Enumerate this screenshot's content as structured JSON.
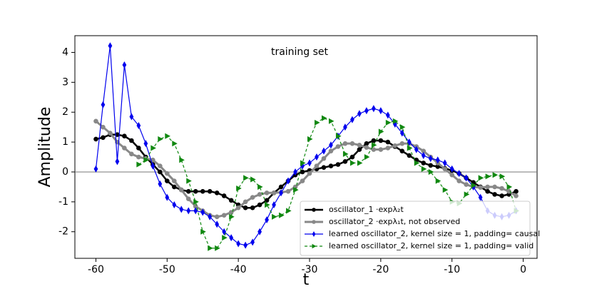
{
  "chart_data": {
    "type": "line",
    "xlabel": "t",
    "ylabel": "Amplitude",
    "annotation": "training set",
    "x": [
      -60,
      -59,
      -58,
      -57,
      -56,
      -55,
      -54,
      -53,
      -52,
      -51,
      -50,
      -49,
      -48,
      -47,
      -46,
      -45,
      -44,
      -43,
      -42,
      -41,
      -40,
      -39,
      -38,
      -37,
      -36,
      -35,
      -34,
      -33,
      -32,
      -31,
      -30,
      -29,
      -28,
      -27,
      -26,
      -25,
      -24,
      -23,
      -22,
      -21,
      -20,
      -19,
      -18,
      -17,
      -16,
      -15,
      -14,
      -13,
      -12,
      -11,
      -10,
      -9,
      -8,
      -7,
      -6,
      -5,
      -4,
      -3,
      -2,
      -1
    ],
    "series": [
      {
        "name": "oscillator_1 ·expλ₂t",
        "color": "#000000",
        "marker": "circle",
        "dashed": false,
        "width": 2.5,
        "values": [
          1.1,
          1.15,
          1.25,
          1.25,
          1.2,
          1.05,
          0.8,
          0.5,
          0.25,
          0.0,
          -0.3,
          -0.5,
          -0.6,
          -0.65,
          -0.65,
          -0.65,
          -0.65,
          -0.7,
          -0.8,
          -0.95,
          -1.1,
          -1.2,
          -1.2,
          -1.1,
          -0.95,
          -0.7,
          -0.5,
          -0.3,
          -0.1,
          0.0,
          0.05,
          0.1,
          0.15,
          0.2,
          0.25,
          0.35,
          0.5,
          0.75,
          0.95,
          1.05,
          1.05,
          1.0,
          0.85,
          0.7,
          0.55,
          0.4,
          0.3,
          0.22,
          0.18,
          0.12,
          0.05,
          -0.05,
          -0.2,
          -0.35,
          -0.5,
          -0.65,
          -0.75,
          -0.8,
          -0.75,
          -0.65
        ]
      },
      {
        "name": "oscillator_2 ·expλ₁t, not observed",
        "color": "#888888",
        "marker": "circle",
        "dashed": false,
        "width": 3,
        "values": [
          1.7,
          1.5,
          1.3,
          1.0,
          0.8,
          0.6,
          0.5,
          0.45,
          0.4,
          0.2,
          -0.05,
          -0.3,
          -0.6,
          -0.9,
          -1.15,
          -1.3,
          -1.45,
          -1.5,
          -1.45,
          -1.35,
          -1.2,
          -1.0,
          -0.85,
          -0.75,
          -0.7,
          -0.7,
          -0.68,
          -0.65,
          -0.5,
          -0.3,
          -0.05,
          0.2,
          0.45,
          0.7,
          0.85,
          0.95,
          0.95,
          0.9,
          0.82,
          0.75,
          0.75,
          0.8,
          0.88,
          0.95,
          0.95,
          0.85,
          0.7,
          0.5,
          0.3,
          0.1,
          -0.1,
          -0.3,
          -0.42,
          -0.5,
          -0.52,
          -0.5,
          -0.5,
          -0.55,
          -0.65,
          -0.8
        ]
      },
      {
        "name": "learned oscillator_2, kernel size = 1, padding= causal",
        "color": "#0000ee",
        "marker": "diamond",
        "dashed": false,
        "width": 1.2,
        "values": [
          0.1,
          2.25,
          4.22,
          0.35,
          3.58,
          1.85,
          1.55,
          0.95,
          0.2,
          -0.4,
          -0.85,
          -1.1,
          -1.25,
          -1.3,
          -1.3,
          -1.35,
          -1.5,
          -1.75,
          -2.0,
          -2.2,
          -2.4,
          -2.45,
          -2.35,
          -2.0,
          -1.6,
          -1.1,
          -0.7,
          -0.3,
          0.0,
          0.2,
          0.3,
          0.5,
          0.7,
          0.9,
          1.2,
          1.5,
          1.75,
          1.95,
          2.05,
          2.12,
          2.05,
          1.9,
          1.6,
          1.3,
          1.0,
          0.75,
          0.55,
          0.45,
          0.4,
          0.3,
          0.1,
          -0.05,
          -0.2,
          -0.5,
          -0.85,
          -1.3,
          -1.45,
          -1.5,
          -1.45,
          -1.3
        ]
      },
      {
        "name": "learned oscillator_2, kernel size = 1, padding= valid",
        "color": "#108810",
        "marker": "triangle",
        "dashed": true,
        "width": 1.2,
        "values": [
          null,
          null,
          null,
          null,
          null,
          null,
          0.25,
          0.4,
          0.8,
          1.1,
          1.2,
          0.95,
          0.4,
          -0.3,
          -1.0,
          -2.0,
          -2.55,
          -2.55,
          -2.2,
          -1.5,
          -0.55,
          -0.2,
          -0.25,
          -0.5,
          -1.1,
          -1.5,
          -1.45,
          -1.3,
          -0.6,
          0.3,
          1.1,
          1.65,
          1.8,
          1.7,
          1.2,
          0.6,
          0.3,
          0.3,
          0.5,
          0.9,
          1.35,
          1.65,
          1.7,
          1.5,
          0.8,
          0.3,
          0.1,
          0.0,
          -0.3,
          -0.6,
          -1.0,
          -1.05,
          -0.75,
          -0.45,
          -0.2,
          -0.15,
          -0.1,
          -0.15,
          -0.5,
          -1.3
        ]
      }
    ],
    "hline": 0,
    "xlim": [
      -62.95,
      1.95
    ],
    "xticks": [
      -60,
      -50,
      -40,
      -30,
      -20,
      -10,
      0
    ],
    "ylim": [
      -2.89,
      4.56
    ],
    "yticks": [
      -2,
      -1,
      0,
      1,
      2,
      3,
      4
    ],
    "legend": "lower right"
  }
}
